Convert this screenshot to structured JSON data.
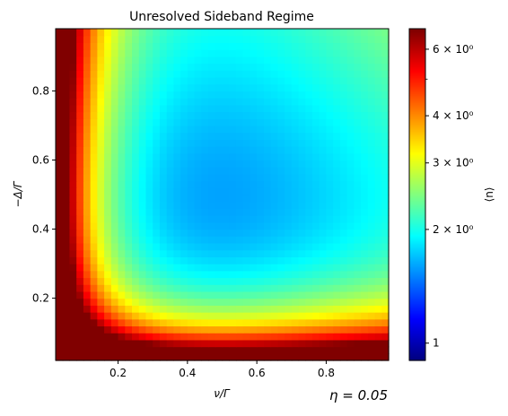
{
  "chart_data": {
    "type": "heatmap",
    "title": "Unresolved Sideband Regime",
    "xlabel": "ν/Γ",
    "ylabel": "−Δ/Γ",
    "colorbar_label": "⟨n⟩",
    "annotation": "η = 0.05",
    "colormap": "jet",
    "color_scale": "log",
    "xlim": [
      0.02,
      0.98
    ],
    "ylim": [
      0.02,
      0.98
    ],
    "grid_size": [
      48,
      48
    ],
    "value_range": [
      0.9,
      6.8
    ],
    "model": "n = 1.6*((ν/Γ)^2 + 1/4)/(ν/Γ) * ((Δ/Γ)^2 + 1/4)/|Δ/Γ|",
    "x_ticks": [
      {
        "value": 0.2,
        "label": "0.2"
      },
      {
        "value": 0.4,
        "label": "0.4"
      },
      {
        "value": 0.6,
        "label": "0.6"
      },
      {
        "value": 0.8,
        "label": "0.8"
      }
    ],
    "y_ticks": [
      {
        "value": 0.2,
        "label": "0.2"
      },
      {
        "value": 0.4,
        "label": "0.4"
      },
      {
        "value": 0.6,
        "label": "0.6"
      },
      {
        "value": 0.8,
        "label": "0.8"
      }
    ],
    "colorbar_major_ticks": [
      {
        "value": 1,
        "label": "1"
      },
      {
        "value": 2,
        "label": "2 × 10⁰"
      },
      {
        "value": 3,
        "label": "3 × 10⁰"
      },
      {
        "value": 4,
        "label": "4 × 10⁰"
      },
      {
        "value": 6,
        "label": "6 × 10⁰"
      }
    ],
    "colorbar_minor_ticks": [
      5
    ]
  }
}
